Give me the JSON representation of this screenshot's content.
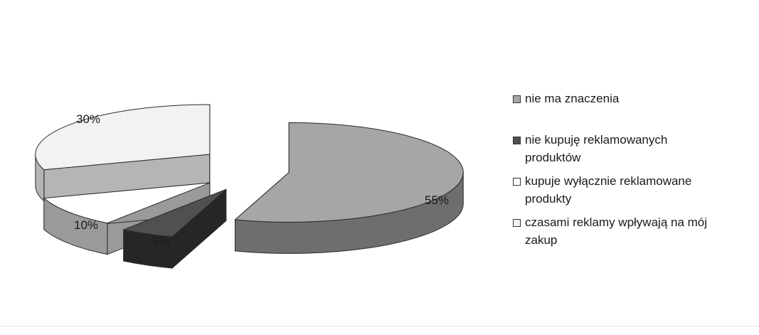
{
  "chart_data": {
    "type": "pie",
    "title": "",
    "slices": [
      {
        "label": "nie ma znaczenia",
        "value": 55,
        "value_label": "55%",
        "color": "#a6a6a6",
        "side_color": "#6e6e6e"
      },
      {
        "label": "nie kupuję reklamowanych produktów",
        "value": 5,
        "value_label": "5%",
        "color": "#505050",
        "side_color": "#262626"
      },
      {
        "label": "kupuje wyłącznie reklamowane produkty",
        "value": 10,
        "value_label": "10%",
        "color": "#ffffff",
        "side_color": "#9a9a9a"
      },
      {
        "label": "czasami reklamy wpływają na mój zakup",
        "value": 30,
        "value_label": "30%",
        "color": "#f2f2f2",
        "side_color": "#b5b5b5"
      }
    ],
    "legend_placement": "right",
    "three_d": true,
    "exploded": true
  }
}
